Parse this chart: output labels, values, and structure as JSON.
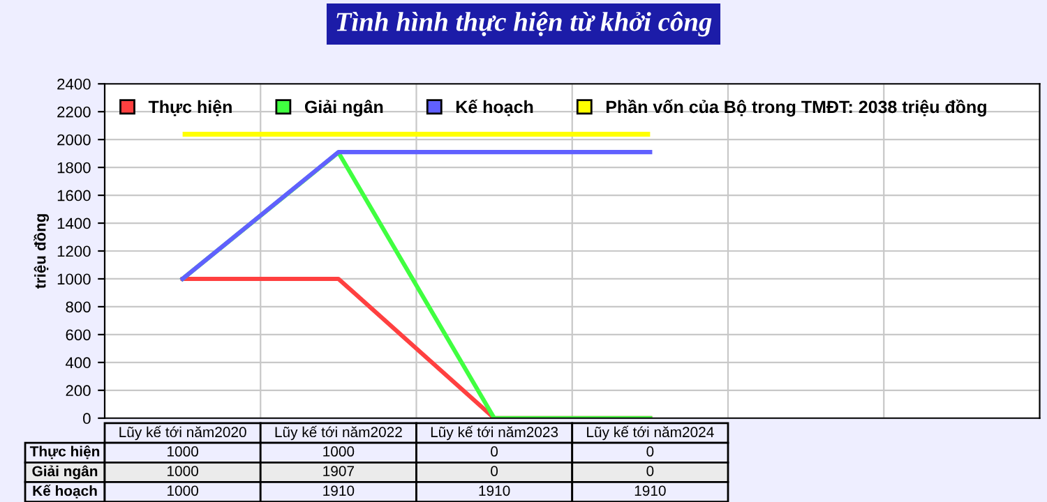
{
  "chart_data": {
    "type": "line",
    "title": "Tình hình thực hiện từ khởi công",
    "ylabel": "triệu đồng",
    "categories": [
      "Lũy kế tới năm2020",
      "Lũy kế tới năm2022",
      "Lũy kế tới năm2023",
      "Lũy kế tới năm2024",
      null,
      null
    ],
    "series": [
      {
        "name": "Thực hiện",
        "color": "#ff4040",
        "values": [
          1000,
          1000,
          0,
          0,
          null,
          null
        ]
      },
      {
        "name": "Giải ngân",
        "color": "#40ff40",
        "values": [
          1000,
          1907,
          0,
          0,
          null,
          null
        ]
      },
      {
        "name": "Kế hoạch",
        "color": "#6060ff",
        "values": [
          1000,
          1910,
          1910,
          1910,
          null,
          null
        ]
      }
    ],
    "ref_lines": [
      {
        "axis": "y",
        "value": 2038,
        "label": "Phần vốn của Bộ trong TMĐT: 2038 triệu đồng",
        "color": "#ffff00"
      }
    ],
    "ylim": [
      0,
      2400
    ],
    "yticks": [
      0,
      200,
      400,
      600,
      800,
      1000,
      1200,
      1400,
      1600,
      1800,
      2000,
      2200,
      2400
    ],
    "grid": true,
    "legend": "top left",
    "marker": "none",
    "line_style": "solid",
    "data_labels": true
  }
}
